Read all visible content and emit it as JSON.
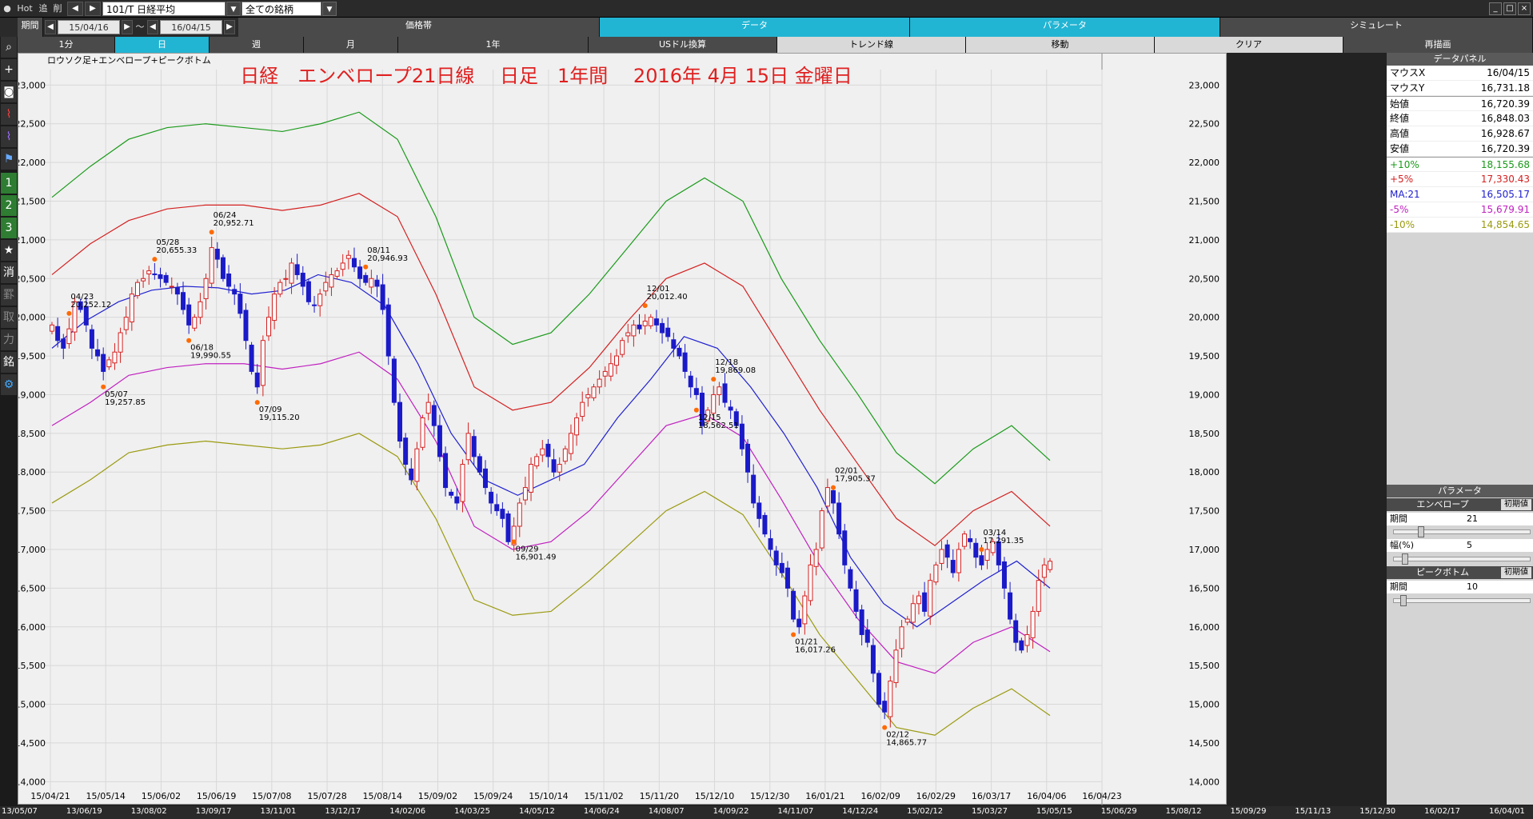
{
  "toolbar": {
    "hot": "Hot",
    "tsui": "追",
    "sakujo": "削",
    "symbol": "101/T 日経平均",
    "universe": "全ての銘柄"
  },
  "tabs": {
    "kikan": "期間",
    "from": "15/04/16",
    "to": "16/04/15",
    "tilde": "～",
    "kakaku": "価格帯",
    "data": "データ",
    "param": "パラメータ",
    "simu": "シミュレート"
  },
  "row3": {
    "m1": "1分",
    "day": "日",
    "week": "週",
    "month": "月",
    "year": "1年",
    "usd": "USドル換算",
    "trend": "トレンド線",
    "move": "移動",
    "clear": "クリア",
    "redraw": "再描画"
  },
  "left_icons": {
    "n1": "1",
    "n2": "2",
    "n3": "3",
    "kesu": "消",
    "kei": "罫",
    "tori": "取",
    "chikara": "力",
    "mei": "銘"
  },
  "chart_data": {
    "type": "candlestick",
    "title": "日経　エンベロープ21日線　 日足　1年間　 2016年 4月 15日 金曜日",
    "subtitle": "ロウソク足+エンベロープ+ピークボトム",
    "ylim": [
      13900,
      23200
    ],
    "y_ticks": [
      14000,
      14500,
      15000,
      15500,
      16000,
      16500,
      17000,
      17500,
      18000,
      18500,
      19000,
      19500,
      20000,
      20500,
      21000,
      21500,
      22000,
      22500,
      23000
    ],
    "x_ticks": [
      "15/04/21",
      "15/05/14",
      "15/06/02",
      "15/06/19",
      "15/07/08",
      "15/07/28",
      "15/08/14",
      "15/09/02",
      "15/09/24",
      "15/10/14",
      "15/11/02",
      "15/11/20",
      "15/12/10",
      "15/12/30",
      "16/01/21",
      "16/02/09",
      "16/02/29",
      "16/03/17",
      "16/04/06",
      "16/04/23"
    ],
    "bottom_dates": [
      "13/05/07",
      "13/06/19",
      "13/08/02",
      "13/09/17",
      "13/11/01",
      "13/12/17",
      "14/02/06",
      "14/03/25",
      "14/05/12",
      "14/06/24",
      "14/08/07",
      "14/09/22",
      "14/11/07",
      "14/12/24",
      "15/02/12",
      "15/03/27",
      "15/05/15",
      "15/06/29",
      "15/08/12",
      "15/09/29",
      "15/11/13",
      "15/12/30",
      "16/02/17",
      "16/04/01"
    ],
    "closes": [
      19900,
      19700,
      19600,
      19850,
      20200,
      20100,
      19900,
      19600,
      19500,
      19300,
      19450,
      19550,
      19800,
      20000,
      20300,
      20450,
      20500,
      20600,
      20550,
      20500,
      20450,
      20400,
      20300,
      20100,
      19900,
      20000,
      20200,
      20500,
      20900,
      20750,
      20500,
      20400,
      20300,
      20050,
      19700,
      19300,
      19100,
      19700,
      20000,
      20300,
      20450,
      20500,
      20700,
      20550,
      20400,
      20200,
      20150,
      20300,
      20450,
      20550,
      20600,
      20700,
      20800,
      20650,
      20500,
      20450,
      20500,
      20400,
      20100,
      19500,
      18900,
      18400,
      18100,
      17900,
      18300,
      18700,
      18900,
      18600,
      18200,
      17800,
      17700,
      17600,
      18100,
      18500,
      18200,
      18000,
      17800,
      17600,
      17500,
      17400,
      17100,
      17300,
      17600,
      17800,
      18100,
      18200,
      18300,
      18200,
      18000,
      18100,
      18300,
      18500,
      18700,
      18900,
      19000,
      19100,
      19200,
      19300,
      19400,
      19500,
      19700,
      19800,
      19900,
      19850,
      19950,
      20000,
      19900,
      19800,
      19750,
      19600,
      19500,
      19300,
      19100,
      19000,
      18600,
      18800,
      19000,
      19100,
      18900,
      18800,
      18600,
      18300,
      18000,
      17600,
      17400,
      17200,
      17000,
      16800,
      16700,
      16500,
      16100,
      16000,
      16400,
      16800,
      17000,
      17500,
      17800,
      17600,
      17200,
      16800,
      16500,
      16200,
      15900,
      15800,
      15400,
      15000,
      14900,
      15300,
      15700,
      16000,
      16100,
      16300,
      16400,
      16200,
      16600,
      16800,
      17000,
      16900,
      16700,
      17000,
      17200,
      17100,
      16900,
      16800,
      17000,
      17100,
      16800,
      16500,
      16100,
      15800,
      15700,
      15900,
      16200,
      16600,
      16800,
      16848
    ],
    "ma21_pts": [
      19600,
      19950,
      20200,
      20350,
      20400,
      20380,
      20300,
      20350,
      20550,
      20450,
      20150,
      19400,
      18500,
      17900,
      17700,
      17900,
      18100,
      18700,
      19200,
      19750,
      19600,
      19100,
      18500,
      17800,
      16900,
      16300,
      16000,
      16300,
      16600,
      16850,
      16500
    ],
    "env_plus10": [
      21550,
      21950,
      22300,
      22450,
      22500,
      22450,
      22400,
      22500,
      22650,
      22300,
      21300,
      20000,
      19650,
      19800,
      20300,
      20900,
      21500,
      21800,
      21500,
      20500,
      19700,
      19000,
      18250,
      17850,
      18300,
      18600,
      18150
    ],
    "env_plus5": [
      20550,
      20950,
      21250,
      21400,
      21450,
      21450,
      21380,
      21450,
      21600,
      21300,
      20300,
      19100,
      18800,
      18900,
      19350,
      19950,
      20500,
      20700,
      20400,
      19600,
      18800,
      18100,
      17400,
      17050,
      17500,
      17750,
      17300
    ],
    "env_minus5": [
      18600,
      18900,
      19250,
      19350,
      19400,
      19400,
      19330,
      19400,
      19550,
      19200,
      18400,
      17300,
      17000,
      17100,
      17500,
      18050,
      18600,
      18750,
      18450,
      17650,
      16800,
      16100,
      15550,
      15400,
      15800,
      16000,
      15680
    ],
    "env_minus10": [
      17600,
      17900,
      18250,
      18350,
      18400,
      18350,
      18300,
      18350,
      18500,
      18200,
      17400,
      16350,
      16150,
      16200,
      16600,
      17050,
      17500,
      17750,
      17450,
      16700,
      15900,
      15300,
      14700,
      14600,
      14950,
      15200,
      14854
    ],
    "peaks": [
      {
        "label_date": "04/23",
        "label_value": "20,252.12",
        "i": 3
      },
      {
        "label_date": "05/28",
        "label_value": "20,655.33",
        "i": 18
      },
      {
        "label_date": "06/24",
        "label_value": "20,952.71",
        "i": 28
      },
      {
        "label_date": "08/11",
        "label_value": "20,946.93",
        "i": 55
      },
      {
        "label_date": "12/01",
        "label_value": "20,012.40",
        "i": 104
      },
      {
        "label_date": "12/18",
        "label_value": "19,869.08",
        "i": 116
      },
      {
        "label_date": "02/01",
        "label_value": "17,905.37",
        "i": 137
      },
      {
        "label_date": "03/14",
        "label_value": "17,291.35",
        "i": 163
      }
    ],
    "bottoms": [
      {
        "label_date": "05/07",
        "label_value": "19,257.85",
        "i": 9
      },
      {
        "label_date": "06/18",
        "label_value": "19,990.55",
        "i": 24
      },
      {
        "label_date": "07/09",
        "label_value": "19,115.20",
        "i": 36
      },
      {
        "label_date": "09/29",
        "label_value": "16,901.49",
        "i": 81
      },
      {
        "label_date": "12/15",
        "label_value": "18,562.51",
        "i": 113
      },
      {
        "label_date": "01/21",
        "label_value": "16,017.26",
        "i": 130
      },
      {
        "label_date": "02/12",
        "label_value": "14,865.77",
        "i": 146
      }
    ]
  },
  "data_panel": {
    "title": "データパネル",
    "rows": [
      {
        "k": "マウスX",
        "v": "16/04/15",
        "c": "#000"
      },
      {
        "k": "マウスY",
        "v": "16,731.18",
        "c": "#000"
      },
      {
        "k": "始値",
        "v": "16,720.39",
        "c": "#000"
      },
      {
        "k": "終値",
        "v": "16,848.03",
        "c": "#000"
      },
      {
        "k": "高値",
        "v": "16,928.67",
        "c": "#000"
      },
      {
        "k": "安値",
        "v": "16,720.39",
        "c": "#000"
      },
      {
        "k": "+10%",
        "v": "18,155.68",
        "c": "#1a9a1a"
      },
      {
        "k": "+5%",
        "v": "17,330.43",
        "c": "#d42020"
      },
      {
        "k": "MA:21",
        "v": "16,505.17",
        "c": "#2020d0"
      },
      {
        "k": "-5%",
        "v": "15,679.91",
        "c": "#c020c0"
      },
      {
        "k": "-10%",
        "v": "14,854.65",
        "c": "#9a9a10"
      }
    ]
  },
  "param_panel": {
    "title": "パラメータ",
    "env_label": "エンベロープ",
    "init": "初期値",
    "period_label": "期間",
    "period": "21",
    "width_label": "幅(%)",
    "width": "5",
    "pb_label": "ピークボトム",
    "pb_init": "初期値",
    "pb_period_label": "期間",
    "pb_period": "10"
  }
}
